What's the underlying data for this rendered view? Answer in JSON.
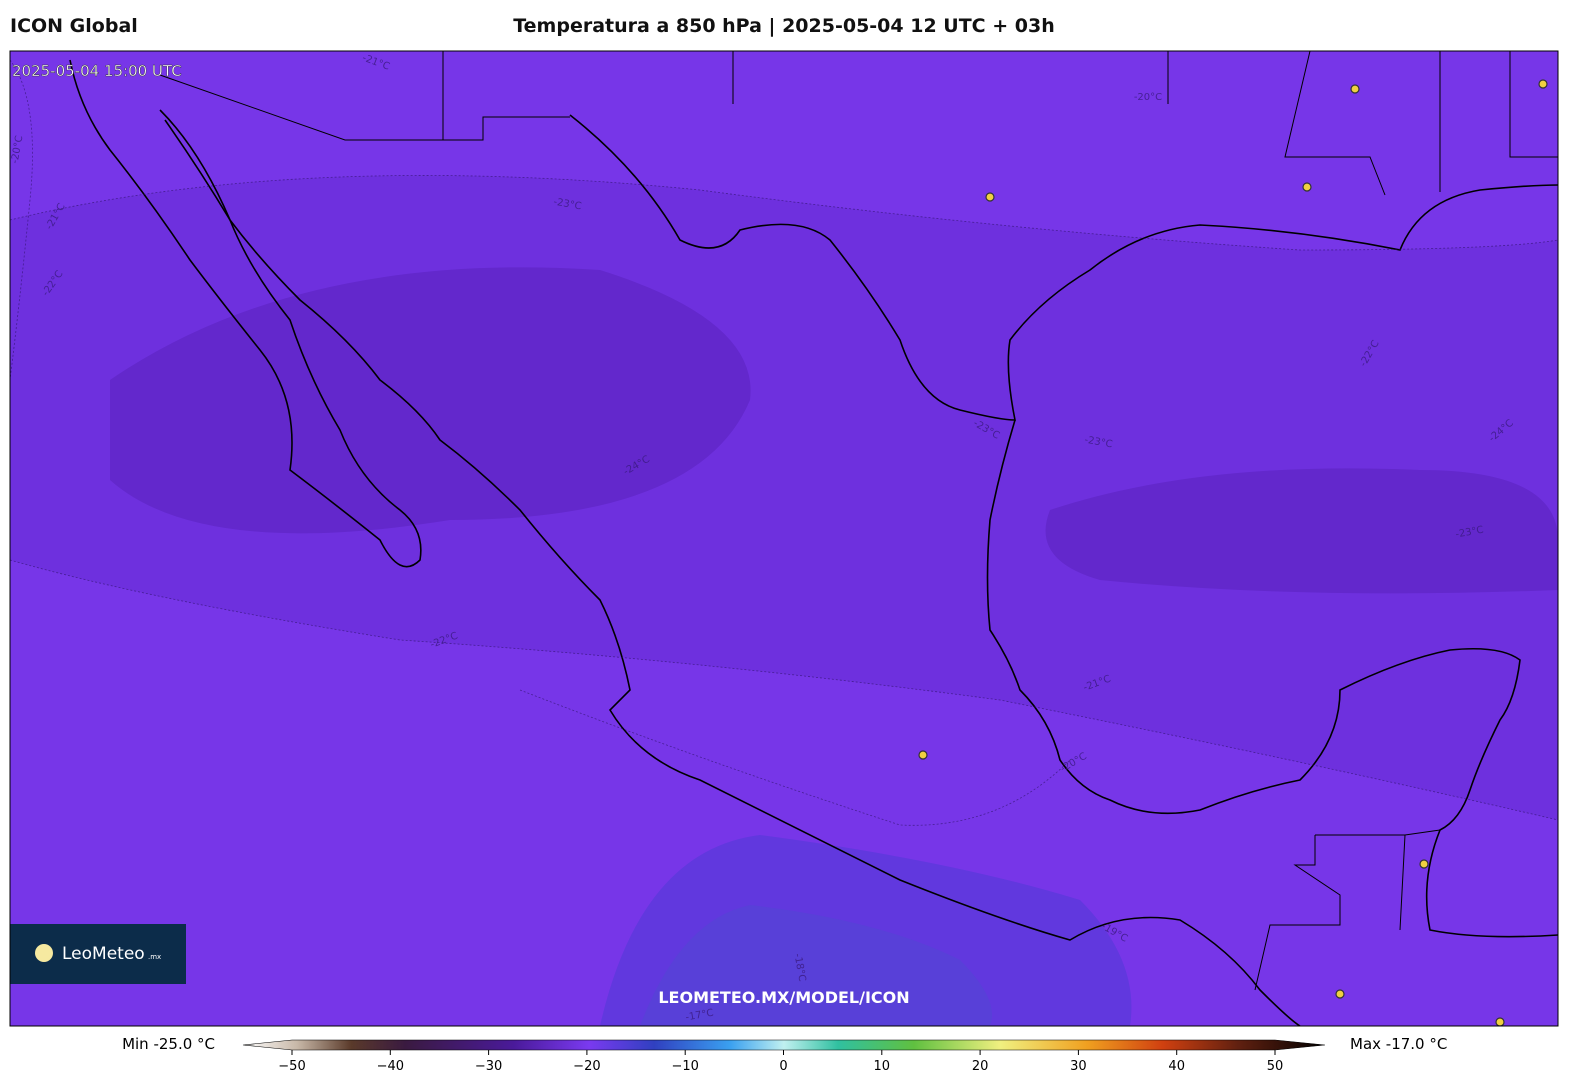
{
  "header": {
    "model": "ICON Global",
    "title": "Temperatura a 850 hPa | 2025-05-04 12 UTC + 03h"
  },
  "map": {
    "valid_time": "2025-05-04 15:00 UTC",
    "contour_labels": [
      "-21°C",
      "-20°C",
      "-20°C",
      "-21°C",
      "-22°C",
      "-23°C",
      "-24°C",
      "-23°C",
      "-23°C",
      "-22°C",
      "-24°C",
      "-23°C",
      "-22°C",
      "-21°C",
      "-20°C",
      "-19°C",
      "-18°C",
      "-17°C"
    ],
    "watermark": "LEOMETEO.MX/MODEL/ICON",
    "logo": {
      "name": "LeoMeteo",
      "suffix": ".mx"
    }
  },
  "colorbar": {
    "min_label": "Min -25.0 °C",
    "max_label": "Max -17.0 °C",
    "ticks": [
      {
        "value": -50,
        "label": "−50"
      },
      {
        "value": -40,
        "label": "−40"
      },
      {
        "value": -30,
        "label": "−30"
      },
      {
        "value": -20,
        "label": "−20"
      },
      {
        "value": -10,
        "label": "−10"
      },
      0,
      10,
      20,
      30,
      40,
      50
    ]
  }
}
